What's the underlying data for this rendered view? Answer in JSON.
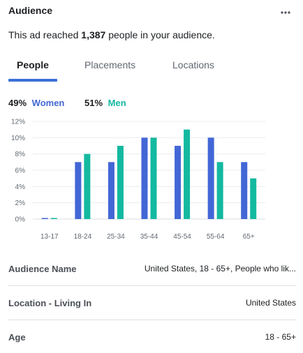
{
  "header": {
    "title": "Audience",
    "more_icon": "more-horizontal-icon"
  },
  "reach": {
    "prefix": "This ad reached ",
    "count": "1,387",
    "suffix": " people in your audience."
  },
  "tabs": [
    {
      "label": "People",
      "active": true
    },
    {
      "label": "Placements",
      "active": false
    },
    {
      "label": "Locations",
      "active": false
    }
  ],
  "gender": {
    "women_pct": "49%",
    "women_label": "Women",
    "men_pct": "51%",
    "men_label": "Men"
  },
  "colors": {
    "women": "#4267d6",
    "men": "#13b9a0",
    "tab_accent": "#3b6fd8"
  },
  "chart_data": {
    "type": "bar",
    "categories": [
      "13-17",
      "18-24",
      "25-34",
      "35-44",
      "45-54",
      "55-64",
      "65+"
    ],
    "series": [
      {
        "name": "Women",
        "values": [
          0,
          7,
          7,
          10,
          9,
          10,
          7
        ]
      },
      {
        "name": "Men",
        "values": [
          0,
          8,
          9,
          10,
          11,
          7,
          5
        ]
      }
    ],
    "yticks": [
      "0%",
      "2%",
      "4%",
      "6%",
      "8%",
      "10%",
      "12%"
    ],
    "ylim": [
      0,
      12
    ],
    "grid": true,
    "xlabel": "",
    "ylabel": ""
  },
  "details": [
    {
      "label": "Audience Name",
      "value": "United States, 18 - 65+, People who lik..."
    },
    {
      "label": "Location - Living In",
      "value": "United States"
    },
    {
      "label": "Age",
      "value": "18 - 65+"
    }
  ]
}
